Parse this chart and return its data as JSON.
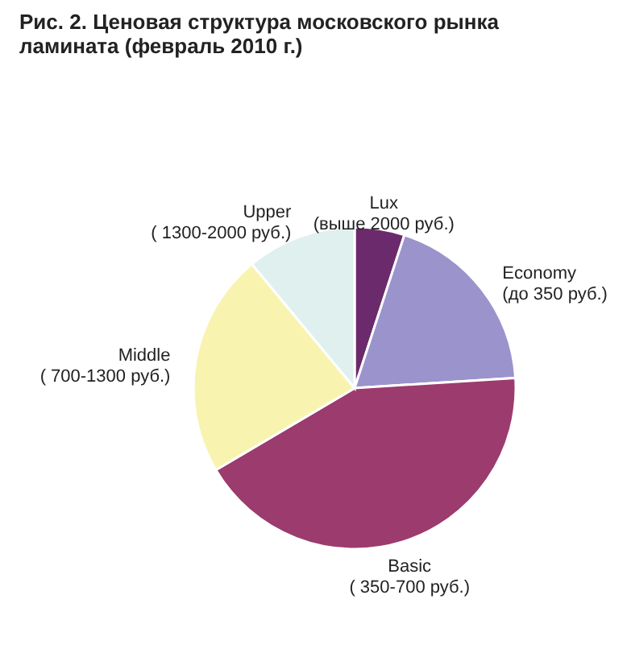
{
  "chart_data": {
    "type": "pie",
    "title": "Рис. 2. Ценовая структура московского рынка ламината (февраль 2010 г.)",
    "categories": [
      "Lux\n(выше 2000 руб.)",
      "Economy\n(до 350 руб.)",
      "Basic\n( 350-700 руб.)",
      "Middle\n( 700-1300 руб.)",
      "Upper\n( 1300-2000 руб.)"
    ],
    "values": [
      5,
      19,
      42.5,
      22.5,
      11
    ],
    "colors": [
      "#6b2a6b",
      "#9b93cc",
      "#9c3b6e",
      "#f8f4b0",
      "#dff0ee"
    ],
    "legend": false
  }
}
